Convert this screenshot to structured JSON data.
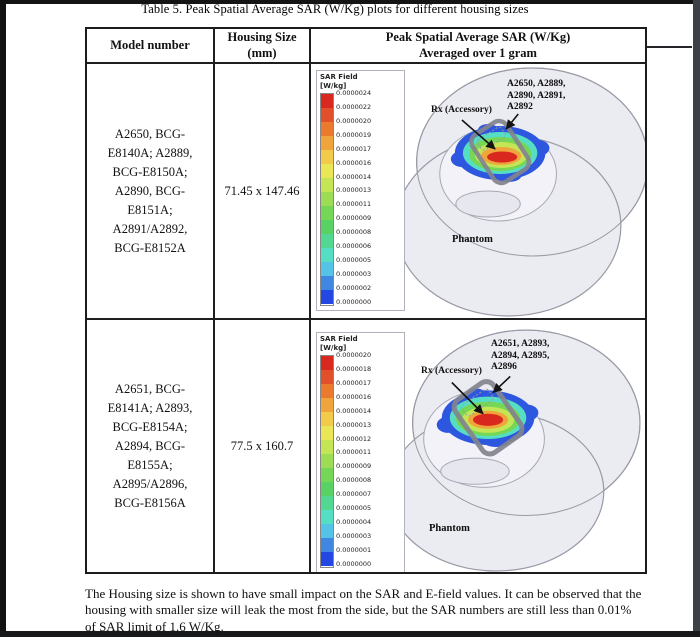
{
  "page": {
    "title": "Table 5. Peak Spatial Average SAR (W/Kg) plots for different housing sizes",
    "footer": "The Housing size is shown to have small impact on the SAR and E-field values. It can be observed that the housing with smaller size will leak the most from the side, but the SAR numbers are still still less than 0.01% of SAR limit of 1.6 W/Kg."
  },
  "footer_text": "The Housing size is shown to have small impact on the SAR and E-field values. It can be observed that the housing with smaller size will leak the most from the side, but the SAR numbers are still less than 0.01% of SAR limit of 1.6 W/Kg.",
  "table": {
    "headers": {
      "model": "Model number",
      "housing_line1": "Housing Size",
      "housing_line2": "(mm)",
      "sar_line1": "Peak Spatial Average SAR (W/Kg)",
      "sar_line2": "Averaged over 1 gram"
    },
    "rows": [
      {
        "model_lines": [
          "A2650, BCG-",
          "E8140A; A2889,",
          "BCG-E8150A;",
          "A2890, BCG-",
          "E8151A;",
          "A2891/A2892,",
          "BCG-E8152A"
        ],
        "housing_size": "71.45 x 147.46",
        "plot": {
          "legend_title": "SAR Field",
          "legend_unit": "[W/kg]",
          "legend_values": [
            "0.0000024",
            "0.0000022",
            "0.0000020",
            "0.0000019",
            "0.0000017",
            "0.0000016",
            "0.0000014",
            "0.0000013",
            "0.0000011",
            "0.0000009",
            "0.0000008",
            "0.0000006",
            "0.0000005",
            "0.0000003",
            "0.0000002",
            "0.0000000"
          ],
          "device_label_lines": [
            "A2650, A2889,",
            "A2890, A2891,",
            "A2892"
          ],
          "rx_label": "Rx (Accessory)",
          "phantom_label": "Phantom"
        }
      },
      {
        "model_lines": [
          "A2651, BCG-",
          "E8141A; A2893,",
          "BCG-E8154A;",
          "A2894, BCG-",
          "E8155A;",
          "A2895/A2896,",
          "BCG-E8156A"
        ],
        "housing_size": "77.5 x 160.7",
        "plot": {
          "legend_title": "SAR Field",
          "legend_unit": "[W/kg]",
          "legend_values": [
            "0.0000020",
            "0.0000018",
            "0.0000017",
            "0.0000016",
            "0.0000014",
            "0.0000013",
            "0.0000012",
            "0.0000011",
            "0.0000009",
            "0.0000008",
            "0.0000007",
            "0.0000005",
            "0.0000004",
            "0.0000003",
            "0.0000001",
            "0.0000000"
          ],
          "device_label_lines": [
            "A2651, A2893,",
            "A2894, A2895,",
            "A2896"
          ],
          "rx_label": "Rx (Accessory)",
          "phantom_label": "Phantom"
        }
      }
    ]
  },
  "legend_colors": [
    "#d9281e",
    "#e1502a",
    "#ea7a2e",
    "#f0a53c",
    "#f2cb4c",
    "#e9e755",
    "#c4e556",
    "#9cdd55",
    "#75d755",
    "#58d165",
    "#53d894",
    "#56dec4",
    "#55c3e5",
    "#3f87e0",
    "#2347e3"
  ]
}
